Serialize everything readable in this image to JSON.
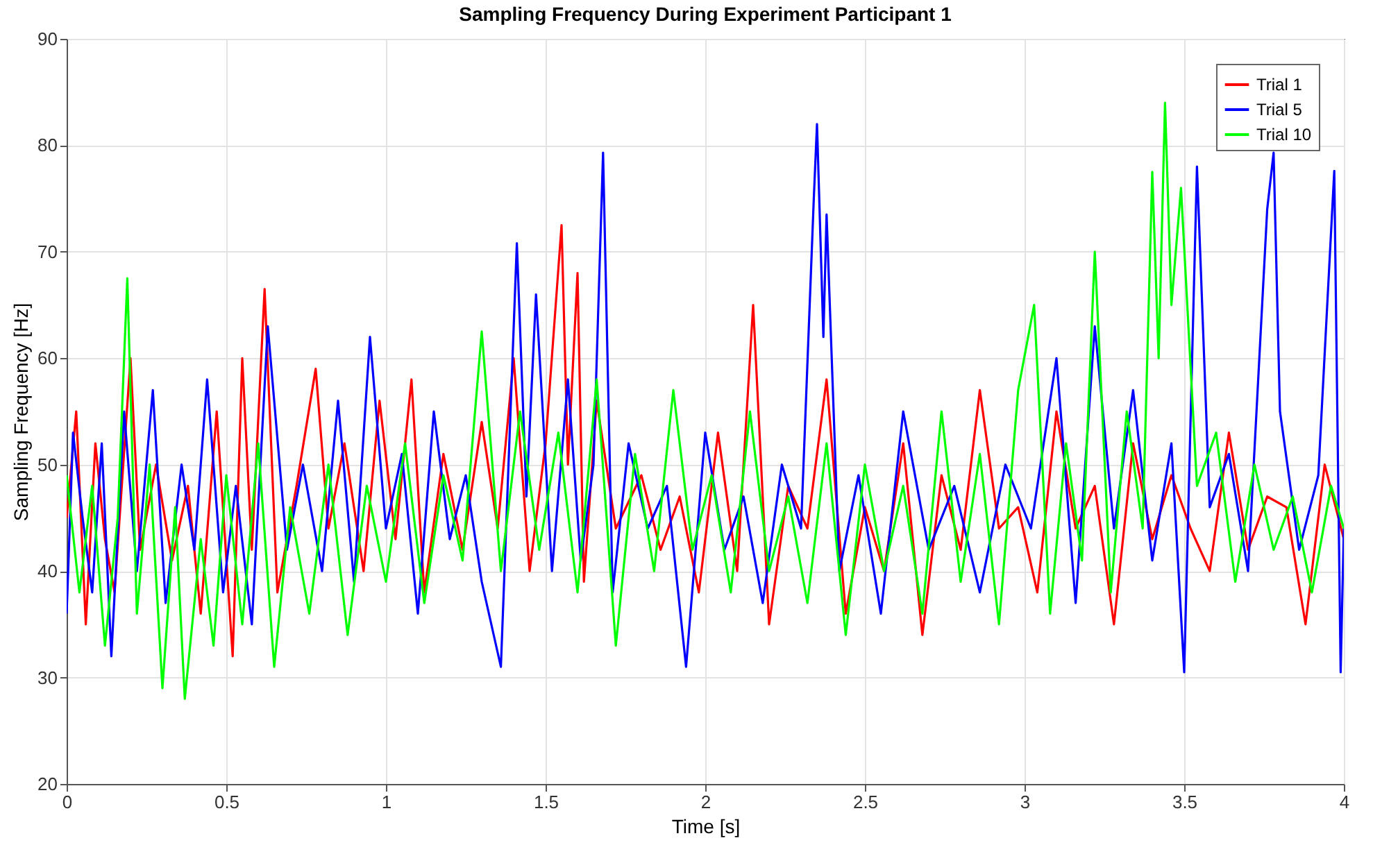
{
  "chart_data": {
    "type": "line",
    "title": "Sampling Frequency During Experiment Participant 1",
    "xlabel": "Time [s]",
    "ylabel": "Sampling Frequency [Hz]",
    "xlim": [
      0,
      4
    ],
    "ylim": [
      20,
      90
    ],
    "xticks": [
      0,
      0.5,
      1,
      1.5,
      2,
      2.5,
      3,
      3.5,
      4
    ],
    "yticks": [
      20,
      30,
      40,
      50,
      60,
      70,
      80,
      90
    ],
    "grid": true,
    "legend": "top right",
    "series": [
      {
        "name": "Trial 1",
        "color": "#ff0000",
        "x": [
          0,
          0.03,
          0.06,
          0.09,
          0.12,
          0.15,
          0.2,
          0.23,
          0.28,
          0.33,
          0.38,
          0.42,
          0.47,
          0.52,
          0.55,
          0.58,
          0.62,
          0.66,
          0.72,
          0.78,
          0.82,
          0.87,
          0.93,
          0.98,
          1.03,
          1.08,
          1.12,
          1.18,
          1.24,
          1.3,
          1.35,
          1.4,
          1.45,
          1.5,
          1.55,
          1.57,
          1.6,
          1.62,
          1.66,
          1.72,
          1.8,
          1.86,
          1.92,
          1.98,
          2.04,
          2.1,
          2.15,
          2.2,
          2.26,
          2.32,
          2.38,
          2.44,
          2.5,
          2.56,
          2.62,
          2.68,
          2.74,
          2.8,
          2.86,
          2.92,
          2.98,
          3.04,
          3.1,
          3.16,
          3.22,
          3.28,
          3.34,
          3.4,
          3.46,
          3.52,
          3.58,
          3.64,
          3.7,
          3.76,
          3.82,
          3.88,
          3.94,
          4.0
        ],
        "values": [
          45,
          55,
          35,
          52,
          43,
          38,
          60,
          42,
          50,
          41,
          48,
          36,
          55,
          32,
          60,
          42,
          66.5,
          38,
          48,
          59,
          44,
          52,
          40,
          56,
          43,
          58,
          38,
          51,
          42,
          54,
          44,
          60,
          40,
          52,
          72.5,
          50,
          68,
          39,
          56,
          44,
          49,
          42,
          47,
          38,
          53,
          40,
          65,
          35,
          48,
          44,
          58,
          36,
          46,
          40,
          52,
          34,
          49,
          42,
          57,
          44,
          46,
          38,
          55,
          44,
          48,
          35,
          52,
          43,
          49,
          44,
          40,
          53,
          42,
          47,
          46,
          35,
          50,
          43
        ]
      },
      {
        "name": "Trial 5",
        "color": "#0000ff",
        "x": [
          0,
          0.02,
          0.05,
          0.08,
          0.11,
          0.14,
          0.18,
          0.22,
          0.27,
          0.31,
          0.36,
          0.4,
          0.44,
          0.49,
          0.53,
          0.58,
          0.63,
          0.69,
          0.74,
          0.8,
          0.85,
          0.9,
          0.95,
          1.0,
          1.05,
          1.1,
          1.15,
          1.2,
          1.25,
          1.3,
          1.36,
          1.41,
          1.44,
          1.47,
          1.52,
          1.57,
          1.61,
          1.65,
          1.68,
          1.71,
          1.76,
          1.82,
          1.88,
          1.94,
          2.0,
          2.06,
          2.12,
          2.18,
          2.24,
          2.3,
          2.34,
          2.35,
          2.37,
          2.38,
          2.42,
          2.48,
          2.55,
          2.62,
          2.7,
          2.78,
          2.86,
          2.94,
          3.02,
          3.1,
          3.16,
          3.22,
          3.28,
          3.34,
          3.4,
          3.46,
          3.5,
          3.54,
          3.58,
          3.64,
          3.7,
          3.76,
          3.78,
          3.8,
          3.86,
          3.92,
          3.97,
          3.99,
          4.0
        ],
        "values": [
          36,
          53,
          45,
          38,
          52,
          32,
          55,
          40,
          57,
          37,
          50,
          42,
          58,
          38,
          48,
          35,
          63,
          42,
          50,
          40,
          56,
          39,
          62,
          44,
          51,
          36,
          55,
          43,
          49,
          39,
          31,
          70.8,
          47,
          66,
          40,
          58,
          41,
          50,
          79.3,
          38,
          52,
          44,
          48,
          31,
          53,
          42,
          47,
          37,
          50,
          44,
          75,
          82,
          62,
          73.5,
          40,
          49,
          36,
          55,
          42,
          48,
          38,
          50,
          44,
          60,
          37,
          63,
          44,
          57,
          41,
          52,
          30.5,
          78,
          46,
          51,
          40,
          74,
          79.3,
          55,
          42,
          49,
          77.6,
          30.5,
          44
        ]
      },
      {
        "name": "Trial 10",
        "color": "#00ff00",
        "x": [
          0,
          0.04,
          0.08,
          0.12,
          0.16,
          0.19,
          0.22,
          0.26,
          0.3,
          0.34,
          0.37,
          0.42,
          0.46,
          0.5,
          0.55,
          0.6,
          0.65,
          0.7,
          0.76,
          0.82,
          0.88,
          0.94,
          1.0,
          1.06,
          1.12,
          1.18,
          1.24,
          1.3,
          1.36,
          1.42,
          1.48,
          1.54,
          1.6,
          1.66,
          1.72,
          1.78,
          1.84,
          1.9,
          1.96,
          2.02,
          2.08,
          2.14,
          2.2,
          2.26,
          2.32,
          2.38,
          2.44,
          2.5,
          2.56,
          2.62,
          2.68,
          2.74,
          2.8,
          2.86,
          2.92,
          2.98,
          3.03,
          3.08,
          3.13,
          3.18,
          3.22,
          3.27,
          3.32,
          3.37,
          3.4,
          3.42,
          3.44,
          3.46,
          3.49,
          3.54,
          3.6,
          3.66,
          3.72,
          3.78,
          3.84,
          3.9,
          3.96,
          4.0
        ],
        "values": [
          49,
          38,
          48,
          33,
          45,
          67.5,
          36,
          50,
          29,
          46,
          28,
          43,
          33,
          49,
          35,
          52,
          31,
          46,
          36,
          50,
          34,
          48,
          39,
          52,
          37,
          49,
          41,
          62.5,
          40,
          55,
          42,
          53,
          38,
          58,
          33,
          51,
          40,
          57,
          42,
          49,
          38,
          55,
          40,
          47,
          37,
          52,
          34,
          50,
          40,
          48,
          36,
          55,
          39,
          51,
          35,
          57,
          65,
          36,
          52,
          41,
          70,
          38,
          55,
          44,
          77.5,
          60,
          84,
          65,
          76,
          48,
          53,
          39,
          50,
          42,
          47,
          38,
          48,
          44
        ]
      }
    ]
  }
}
